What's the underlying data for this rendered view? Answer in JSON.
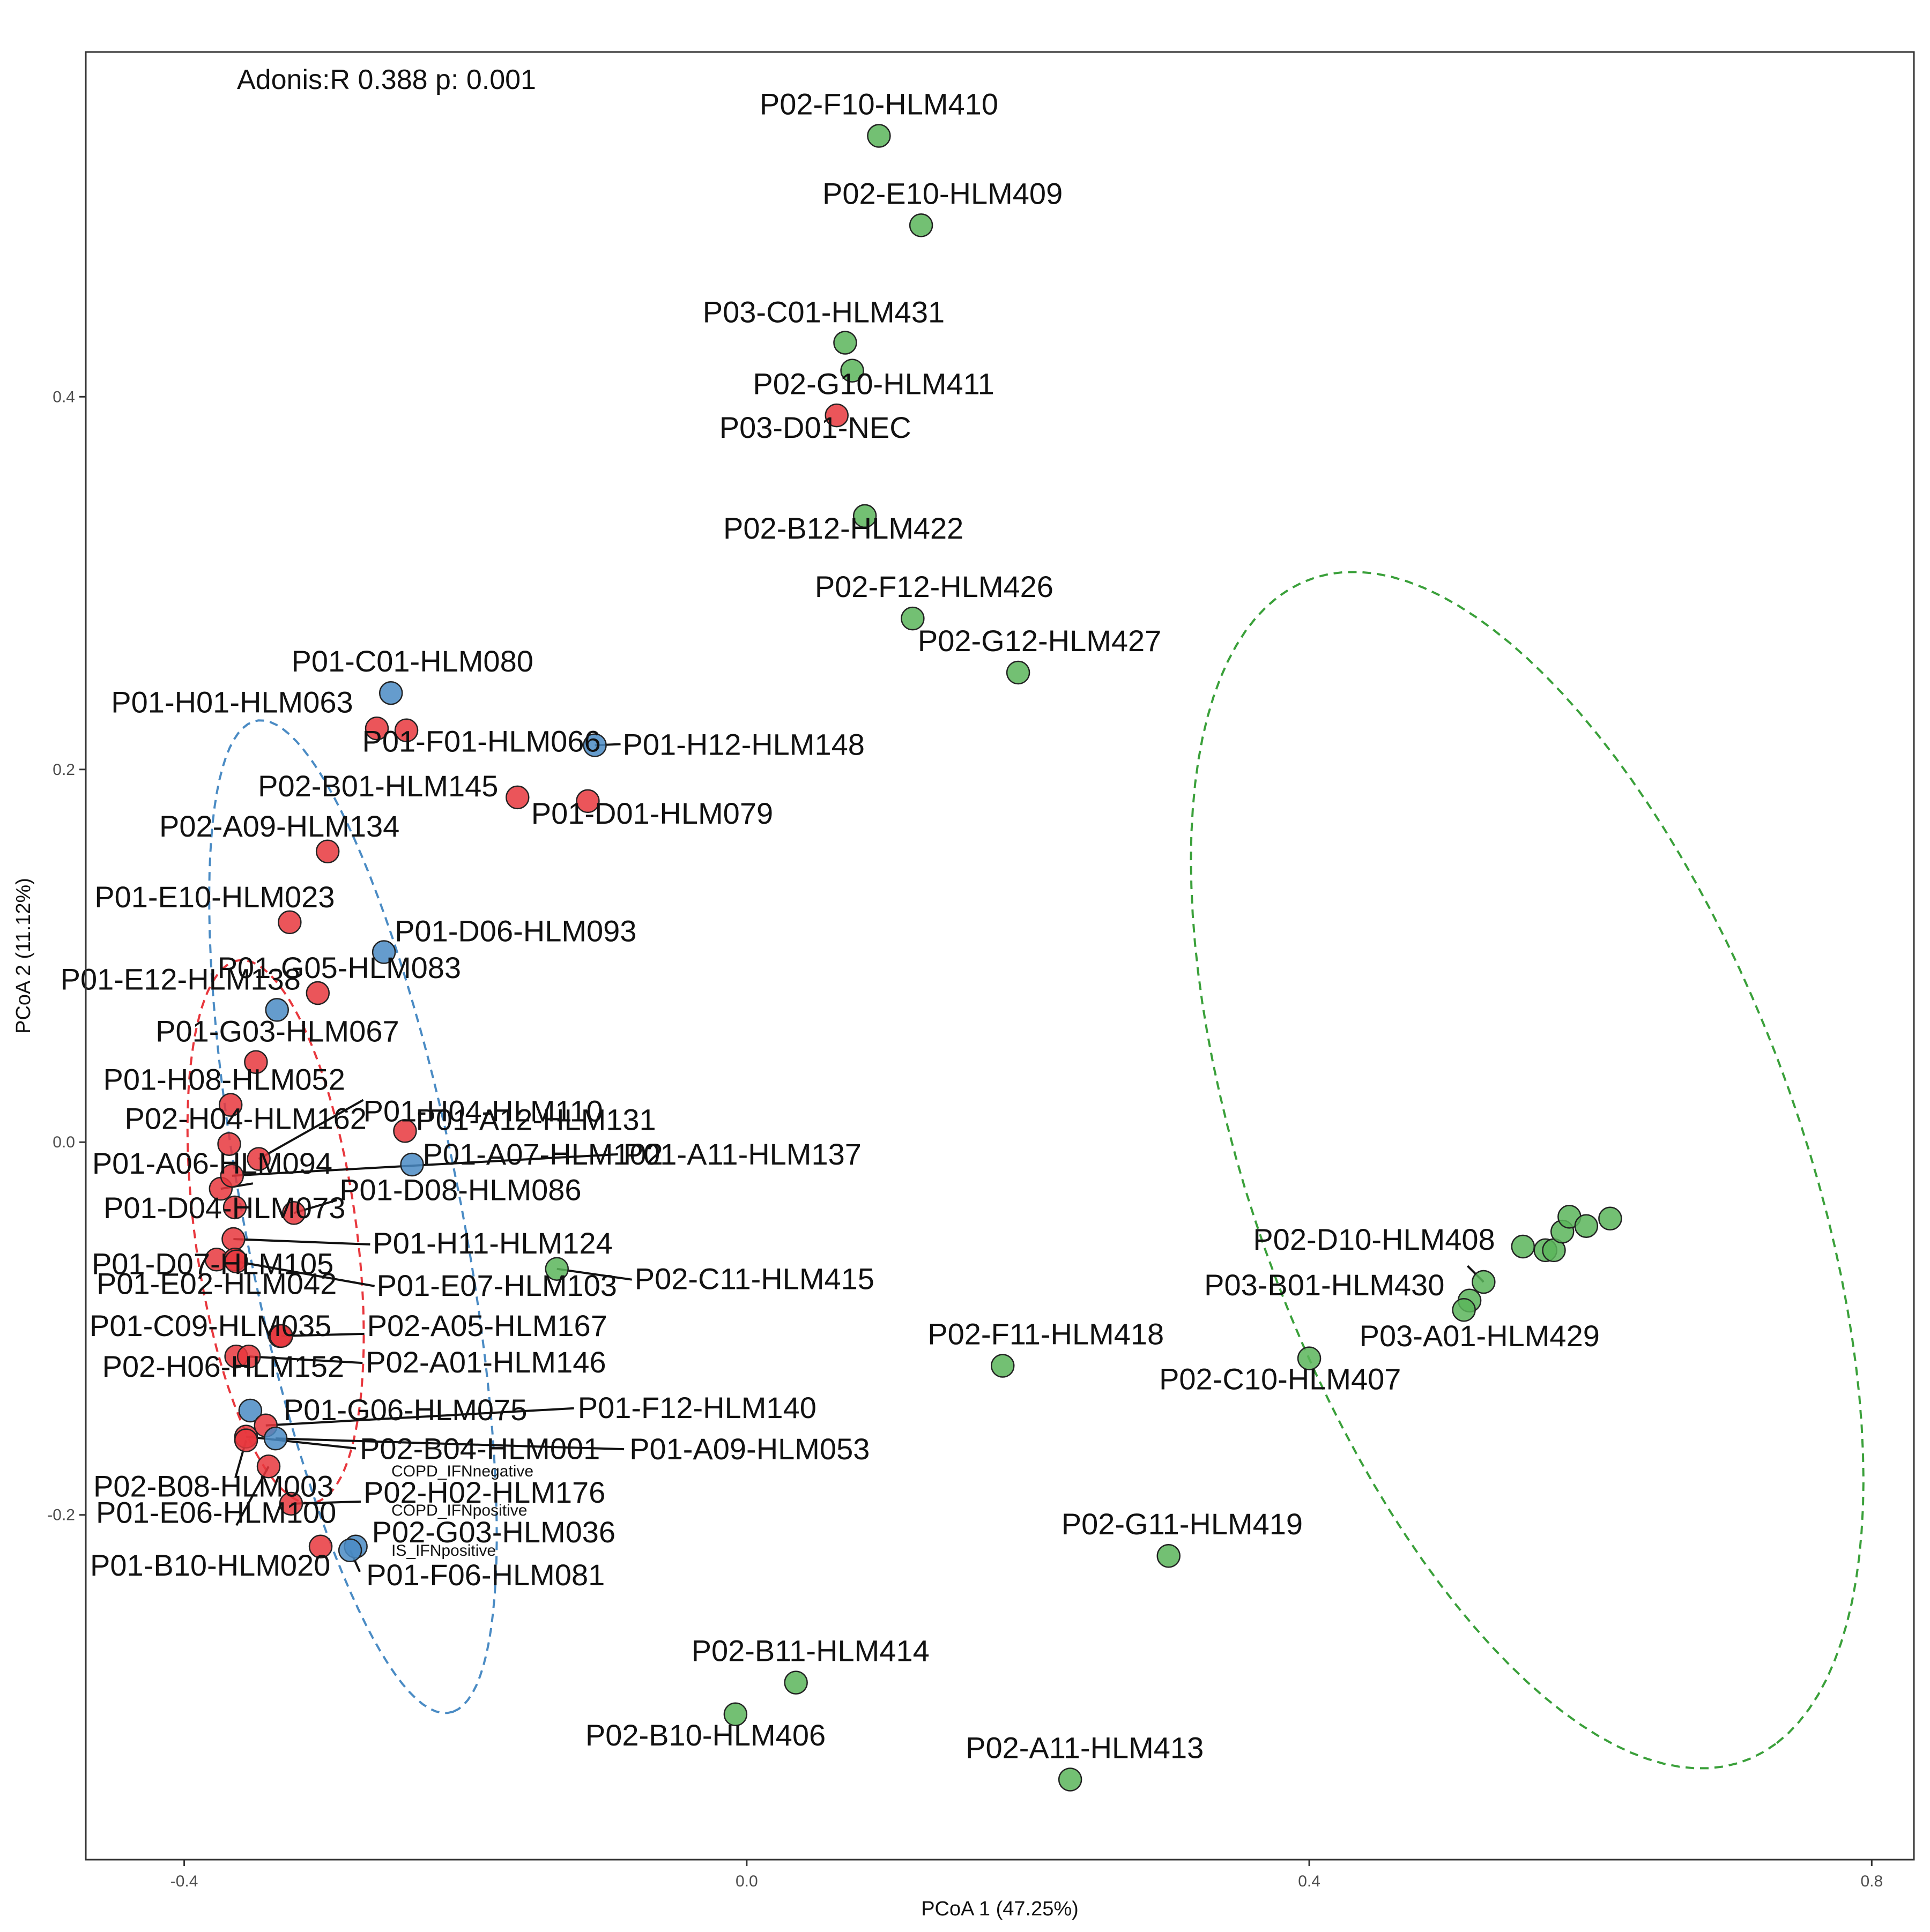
{
  "chart_data": {
    "type": "scatter",
    "annotation": "Adonis:R 0.388 p: 0.001",
    "xlabel": "PCoA 1 (47.25%)",
    "ylabel": "PCoA 2 (11.12%)",
    "xlim": [
      -0.47,
      0.83
    ],
    "ylim": [
      -0.385,
      0.585
    ],
    "x_ticks": [
      -0.4,
      0.0,
      0.4,
      0.8
    ],
    "x_tick_labels": [
      "-0.4",
      "0.0",
      "0.4",
      "0.8"
    ],
    "y_ticks": [
      -0.2,
      0.0,
      0.2,
      0.4
    ],
    "y_tick_labels": [
      "-0.2",
      "0.0",
      "0.2",
      "0.4"
    ],
    "grid": false,
    "groups": [
      {
        "name": "COPD_IFNnegative",
        "color": "#e8373d"
      },
      {
        "name": "COPD_IFNpositive",
        "color": "#4a8bc4"
      },
      {
        "name": "IS_IFNpositive",
        "color": "#5bb55b"
      }
    ],
    "ellipses": [
      {
        "group": "COPD_IFNnegative",
        "color": "#e8373d",
        "cx": -0.335,
        "cy": -0.048,
        "a": 0.148,
        "b": 0.057,
        "angle_deg": -79
      },
      {
        "group": "COPD_IFNpositive",
        "color": "#4a8bc4",
        "cx": -0.28,
        "cy": -0.04,
        "a": 0.275,
        "b": 0.076,
        "angle_deg": -75
      },
      {
        "group": "IS_IFNpositive",
        "color": "#3aa03a",
        "cx": 0.555,
        "cy": -0.015,
        "a": 0.355,
        "b": 0.185,
        "angle_deg": -60
      }
    ],
    "points": [
      {
        "label": "P02-F10-HLM410",
        "group": "IS_IFNpositive",
        "x": 0.094,
        "y": 0.54
      },
      {
        "label": "P02-E10-HLM409",
        "group": "IS_IFNpositive",
        "x": 0.124,
        "y": 0.492
      },
      {
        "label": "P03-C01-HLM431",
        "group": "IS_IFNpositive",
        "x": 0.07,
        "y": 0.429
      },
      {
        "label": "P02-G10-HLM411",
        "group": "IS_IFNpositive",
        "x": 0.075,
        "y": 0.414
      },
      {
        "label": "P03-D01-NEC",
        "group": "COPD_IFNnegative",
        "x": 0.064,
        "y": 0.39
      },
      {
        "label": "P02-B12-HLM422",
        "group": "IS_IFNpositive",
        "x": 0.084,
        "y": 0.336
      },
      {
        "label": "P02-F12-HLM426",
        "group": "IS_IFNpositive",
        "x": 0.118,
        "y": 0.281
      },
      {
        "label": "P02-G12-HLM427",
        "group": "IS_IFNpositive",
        "x": 0.193,
        "y": 0.252
      },
      {
        "label": "P01-C01-HLM080",
        "group": "COPD_IFNpositive",
        "x": -0.253,
        "y": 0.241
      },
      {
        "label": "P01-H01-HLM063",
        "group": "COPD_IFNnegative",
        "x": -0.263,
        "y": 0.222
      },
      {
        "label": "P01-F01-HLM066",
        "group": "COPD_IFNnegative",
        "x": -0.242,
        "y": 0.221
      },
      {
        "label": "P01-H12-HLM148",
        "group": "COPD_IFNpositive",
        "x": -0.108,
        "y": 0.213
      },
      {
        "label": "P02-B01-HLM145",
        "group": "COPD_IFNnegative",
        "x": -0.163,
        "y": 0.185
      },
      {
        "label": "P01-D01-HLM079",
        "group": "COPD_IFNnegative",
        "x": -0.113,
        "y": 0.183
      },
      {
        "label": "P02-A09-HLM134",
        "group": "COPD_IFNnegative",
        "x": -0.298,
        "y": 0.156
      },
      {
        "label": "P01-E10-HLM023",
        "group": "COPD_IFNnegative",
        "x": -0.325,
        "y": 0.118
      },
      {
        "label": "P01-D06-HLM093",
        "group": "COPD_IFNpositive",
        "x": -0.258,
        "y": 0.102
      },
      {
        "label": "P01-G05-HLM083",
        "group": "COPD_IFNnegative",
        "x": -0.305,
        "y": 0.08
      },
      {
        "label": "P01-E12-HLM138",
        "group": "COPD_IFNpositive",
        "x": -0.334,
        "y": 0.071
      },
      {
        "label": "P01-G03-HLM067",
        "group": "COPD_IFNnegative",
        "x": -0.349,
        "y": 0.043
      },
      {
        "label": "P01-H08-HLM052",
        "group": "COPD_IFNnegative",
        "x": -0.367,
        "y": 0.02
      },
      {
        "label": "P01-H04-HLM110",
        "group": "COPD_IFNnegative",
        "x": -0.347,
        "y": -0.009
      },
      {
        "label": "P01-A12-HLM131",
        "group": "COPD_IFNnegative",
        "x": -0.243,
        "y": 0.006
      },
      {
        "label": "P02-H04-HLM162",
        "group": "COPD_IFNnegative",
        "x": -0.368,
        "y": -0.001
      },
      {
        "label": "P01-A07-HLM102",
        "group": "COPD_IFNpositive",
        "x": -0.238,
        "y": -0.012
      },
      {
        "label": "P01-A06-HLM094",
        "group": "COPD_IFNnegative",
        "x": -0.374,
        "y": -0.025
      },
      {
        "label": "P01-D08-HLM086",
        "group": "COPD_IFNnegative",
        "x": -0.322,
        "y": -0.038
      },
      {
        "label": "P01-A11-HLM137",
        "group": "COPD_IFNnegative",
        "x": -0.366,
        "y": -0.018
      },
      {
        "label": "P01-D04-HLM073",
        "group": "COPD_IFNnegative",
        "x": -0.364,
        "y": -0.035
      },
      {
        "label": "P01-H11-HLM124",
        "group": "COPD_IFNnegative",
        "x": -0.365,
        "y": -0.052
      },
      {
        "label": "P01-D07-HLM105",
        "group": "COPD_IFNnegative",
        "x": -0.377,
        "y": -0.063
      },
      {
        "label": "P02-C11-HLM415",
        "group": "IS_IFNpositive",
        "x": -0.135,
        "y": -0.068
      },
      {
        "label": "P01-E02-HLM042",
        "group": "COPD_IFNnegative",
        "x": -0.364,
        "y": -0.063
      },
      {
        "label": "P01-E07-HLM103",
        "group": "COPD_IFNnegative",
        "x": -0.363,
        "y": -0.064
      },
      {
        "label": "P01-C09-HLM035",
        "group": "COPD_IFNnegative",
        "x": -0.332,
        "y": -0.104
      },
      {
        "label": "P02-A05-HLM167",
        "group": "COPD_IFNnegative",
        "x": -0.331,
        "y": -0.104
      },
      {
        "label": "P02-H06-HLM152",
        "group": "COPD_IFNnegative",
        "x": -0.363,
        "y": -0.115
      },
      {
        "label": "P02-A01-HLM146",
        "group": "COPD_IFNnegative",
        "x": -0.354,
        "y": -0.115
      },
      {
        "label": "P01-G06-HLM075",
        "group": "COPD_IFNpositive",
        "x": -0.353,
        "y": -0.144
      },
      {
        "label": "P01-F12-HLM140",
        "group": "COPD_IFNnegative",
        "x": -0.342,
        "y": -0.152
      },
      {
        "label": "P02-B04-HLM001",
        "group": "COPD_IFNnegative",
        "x": -0.356,
        "y": -0.158
      },
      {
        "label": "P01-A09-HLM053",
        "group": "COPD_IFNpositive",
        "x": -0.335,
        "y": -0.159
      },
      {
        "label": "P02-B08-HLM003",
        "group": "COPD_IFNnegative",
        "x": -0.356,
        "y": -0.16
      },
      {
        "label": "P01-E06-HLM100",
        "group": "COPD_IFNnegative",
        "x": -0.34,
        "y": -0.174
      },
      {
        "label": "P02-H02-HLM176",
        "group": "COPD_IFNnegative",
        "x": -0.324,
        "y": -0.194
      },
      {
        "label": "P02-G03-HLM036",
        "group": "COPD_IFNpositive",
        "x": -0.278,
        "y": -0.217
      },
      {
        "label": "P01-B10-HLM020",
        "group": "COPD_IFNnegative",
        "x": -0.303,
        "y": -0.217
      },
      {
        "label": "P01-F06-HLM081",
        "group": "COPD_IFNpositive",
        "x": -0.282,
        "y": -0.219
      },
      {
        "label": "P02-F11-HLM418",
        "group": "IS_IFNpositive",
        "x": 0.182,
        "y": -0.12
      },
      {
        "label": "P02-C10-HLM407",
        "group": "IS_IFNpositive",
        "x": 0.4,
        "y": -0.116
      },
      {
        "label": "P02-D10-HLM408",
        "group": "IS_IFNpositive",
        "x": 0.524,
        "y": -0.075
      },
      {
        "label": "P03-B01-HLM430",
        "group": "IS_IFNpositive",
        "x": 0.514,
        "y": -0.085
      },
      {
        "label": "P03-A01-HLM429",
        "group": "IS_IFNpositive",
        "x": 0.51,
        "y": -0.09
      },
      {
        "label": "P02-G11-HLM419",
        "group": "IS_IFNpositive",
        "x": 0.3,
        "y": -0.222
      },
      {
        "label": "P02-B11-HLM414",
        "group": "IS_IFNpositive",
        "x": 0.035,
        "y": -0.29
      },
      {
        "label": "P02-B10-HLM406",
        "group": "IS_IFNpositive",
        "x": -0.008,
        "y": -0.307
      },
      {
        "label": "P02-A11-HLM413",
        "group": "IS_IFNpositive",
        "x": 0.23,
        "y": -0.342
      },
      {
        "label": "",
        "group": "IS_IFNpositive",
        "x": 0.552,
        "y": -0.056
      },
      {
        "label": "",
        "group": "IS_IFNpositive",
        "x": 0.568,
        "y": -0.058
      },
      {
        "label": "",
        "group": "IS_IFNpositive",
        "x": 0.574,
        "y": -0.058
      },
      {
        "label": "",
        "group": "IS_IFNpositive",
        "x": 0.58,
        "y": -0.048
      },
      {
        "label": "",
        "group": "IS_IFNpositive",
        "x": 0.585,
        "y": -0.04
      },
      {
        "label": "",
        "group": "IS_IFNpositive",
        "x": 0.597,
        "y": -0.045
      },
      {
        "label": "",
        "group": "IS_IFNpositive",
        "x": 0.614,
        "y": -0.041
      }
    ],
    "legend": [
      {
        "name": "COPD_IFNnegative",
        "color": "#e8373d"
      },
      {
        "name": "COPD_IFNpositive",
        "color": "#4a8bc4"
      },
      {
        "name": "IS_IFNpositive",
        "color": "#5bb55b"
      }
    ]
  }
}
